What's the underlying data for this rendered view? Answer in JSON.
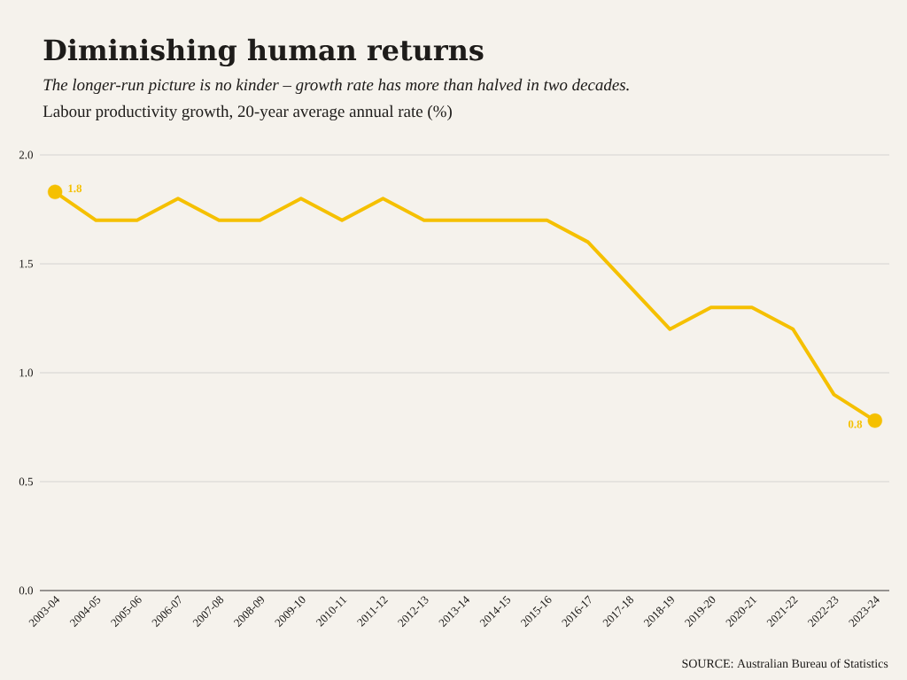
{
  "chart_data": {
    "type": "line",
    "title": "Diminishing human returns",
    "subtitle": "The longer-run picture is no kinder – growth rate has more than halved in two decades.",
    "ylabel": "Labour productivity growth, 20-year average annual rate (%)",
    "categories": [
      "2003-04",
      "2004-05",
      "2005-06",
      "2006-07",
      "2007-08",
      "2008-09",
      "2009-10",
      "2010-11",
      "2011-12",
      "2012-13",
      "2013-14",
      "2014-15",
      "2015-16",
      "2016-17",
      "2017-18",
      "2018-19",
      "2019-20",
      "2020-21",
      "2021-22",
      "2022-23",
      "2023-24"
    ],
    "series": [
      {
        "color": "#f5c000",
        "values": [
          1.83,
          1.7,
          1.7,
          1.8,
          1.7,
          1.7,
          1.8,
          1.7,
          1.8,
          1.7,
          1.7,
          1.7,
          1.7,
          1.6,
          1.4,
          1.2,
          1.3,
          1.3,
          1.2,
          0.9,
          0.78
        ]
      },
      {
        "type": "scatter",
        "color": "#f5c000",
        "values": [
          1.83,
          null,
          null,
          null,
          null,
          null,
          null,
          null,
          null,
          null,
          null,
          null,
          null,
          null,
          null,
          null,
          null,
          null,
          null,
          null,
          0.78
        ],
        "value_labels": [
          "1.8",
          null,
          null,
          null,
          null,
          null,
          null,
          null,
          null,
          null,
          null,
          null,
          null,
          null,
          null,
          null,
          null,
          null,
          null,
          null,
          "0.8"
        ]
      }
    ],
    "ylim": [
      0,
      2
    ],
    "yticks": [
      {
        "value": 0,
        "label": "0.0"
      },
      {
        "value": 0.5,
        "label": "0.5"
      },
      {
        "value": 1,
        "label": "1.0"
      },
      {
        "value": 1.5,
        "label": "1.5"
      },
      {
        "value": 2,
        "label": "2.0"
      }
    ],
    "grid": "y",
    "line_style": "solid",
    "annotations": [
      "SOURCE: Australian Bureau of Statistics"
    ]
  }
}
